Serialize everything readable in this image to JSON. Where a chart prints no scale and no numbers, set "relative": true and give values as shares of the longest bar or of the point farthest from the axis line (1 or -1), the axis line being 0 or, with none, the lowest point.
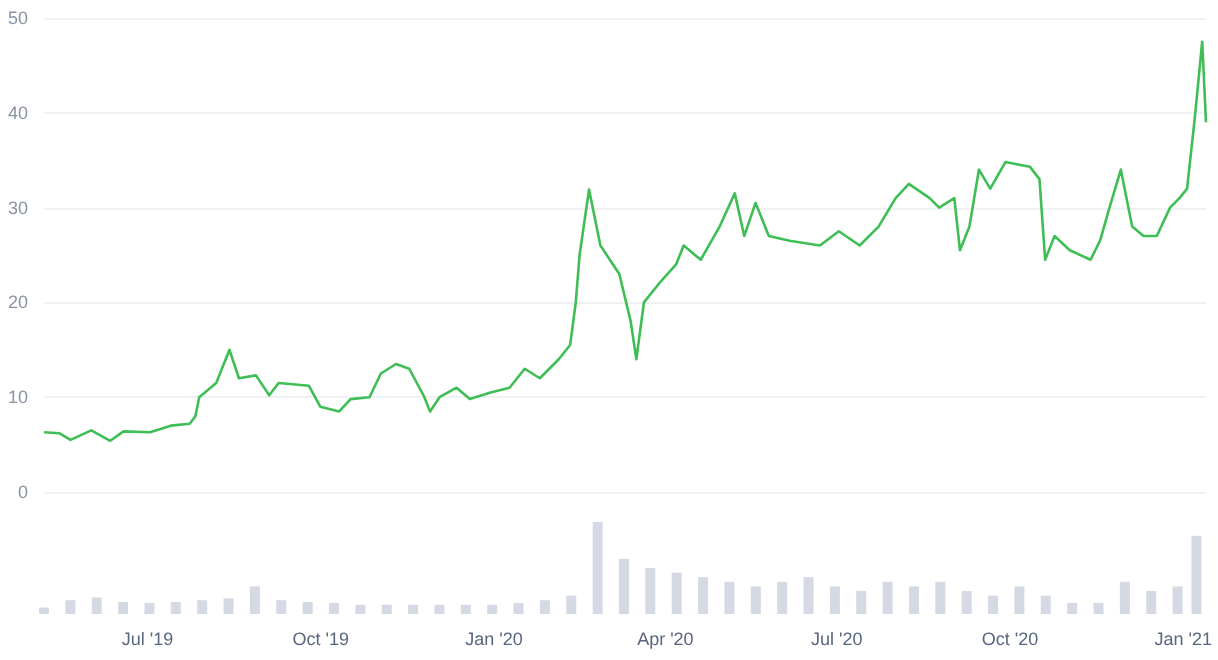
{
  "chart_data": [
    {
      "type": "line",
      "x": [
        "2019-05-07",
        "2019-05-15",
        "2019-05-21",
        "2019-06-01",
        "2019-06-11",
        "2019-06-18",
        "2019-07-02",
        "2019-07-13",
        "2019-07-23",
        "2019-07-26",
        "2019-07-28",
        "2019-08-06",
        "2019-08-13",
        "2019-08-18",
        "2019-08-27",
        "2019-09-03",
        "2019-09-08",
        "2019-09-24",
        "2019-09-30",
        "2019-10-10",
        "2019-10-16",
        "2019-10-26",
        "2019-11-01",
        "2019-11-09",
        "2019-11-16",
        "2019-11-24",
        "2019-11-27",
        "2019-12-02",
        "2019-12-11",
        "2019-12-18",
        "2019-12-29",
        "2020-01-08",
        "2020-01-16",
        "2020-01-24",
        "2020-02-03",
        "2020-02-09",
        "2020-02-12",
        "2020-02-14",
        "2020-02-19",
        "2020-02-25",
        "2020-03-01",
        "2020-03-06",
        "2020-03-12",
        "2020-03-15",
        "2020-03-19",
        "2020-03-27",
        "2020-04-05",
        "2020-04-09",
        "2020-04-18",
        "2020-04-28",
        "2020-05-06",
        "2020-05-11",
        "2020-05-17",
        "2020-05-24",
        "2020-06-04",
        "2020-06-20",
        "2020-06-30",
        "2020-07-11",
        "2020-07-21",
        "2020-07-30",
        "2020-08-06",
        "2020-08-17",
        "2020-08-22",
        "2020-08-30",
        "2020-09-02",
        "2020-09-07",
        "2020-09-12",
        "2020-09-18",
        "2020-09-26",
        "2020-10-09",
        "2020-10-14",
        "2020-10-17",
        "2020-10-22",
        "2020-10-30",
        "2020-11-10",
        "2020-11-15",
        "2020-11-20",
        "2020-11-26",
        "2020-12-02",
        "2020-12-08",
        "2020-12-15",
        "2020-12-22",
        "2020-12-27",
        "2020-12-31",
        "2021-01-04",
        "2021-01-08",
        "2021-01-10"
      ],
      "series": [
        {
          "color": "#3fbe55",
          "values": [
            6.3,
            6.2,
            5.5,
            6.5,
            5.4,
            6.4,
            6.3,
            7.0,
            7.2,
            8.0,
            10,
            11.5,
            15,
            12,
            12.3,
            10.2,
            11.5,
            11.2,
            9,
            8.5,
            9.8,
            10,
            12.5,
            13.5,
            13,
            10,
            8.5,
            10,
            11,
            9.8,
            10.5,
            11,
            13,
            12,
            14,
            15.5,
            20,
            25,
            31.9,
            26,
            24.5,
            23,
            18,
            14,
            20,
            22,
            24,
            26,
            24.5,
            28,
            31.5,
            27,
            30.5,
            27,
            26.5,
            26,
            27.5,
            26,
            28,
            31,
            32.5,
            31,
            30,
            31,
            25.5,
            28,
            34,
            32,
            34.8,
            34.3,
            33,
            24.5,
            27,
            25.5,
            24.5,
            26.5,
            30,
            34,
            28,
            27,
            27,
            30,
            31,
            32,
            39.3,
            47.5,
            39
          ]
        }
      ],
      "xlim": [
        "2019-05-07",
        "2021-01-10"
      ],
      "ylim": [
        0,
        50
      ],
      "yticks": [
        0,
        10,
        20,
        30,
        40,
        50
      ],
      "grid": "y",
      "tick_labels": "y",
      "marker": "none"
    },
    {
      "type": "bar",
      "relative": true,
      "x": [
        "2019-05-07",
        "2019-05-21",
        "2019-06-04",
        "2019-06-18",
        "2019-07-02",
        "2019-07-16",
        "2019-07-30",
        "2019-08-13",
        "2019-08-27",
        "2019-09-10",
        "2019-09-24",
        "2019-10-08",
        "2019-10-22",
        "2019-11-05",
        "2019-11-19",
        "2019-12-03",
        "2019-12-17",
        "2019-12-31",
        "2020-01-14",
        "2020-01-28",
        "2020-02-11",
        "2020-02-25",
        "2020-03-10",
        "2020-03-24",
        "2020-04-07",
        "2020-04-21",
        "2020-05-05",
        "2020-05-19",
        "2020-06-02",
        "2020-06-16",
        "2020-06-30",
        "2020-07-14",
        "2020-07-28",
        "2020-08-11",
        "2020-08-25",
        "2020-09-08",
        "2020-09-22",
        "2020-10-06",
        "2020-10-20",
        "2020-11-03",
        "2020-11-17",
        "2020-12-01",
        "2020-12-15",
        "2020-12-29",
        "2021-01-08"
      ],
      "series": [
        {
          "color": "#d4d9e3",
          "values": [
            0.07,
            0.15,
            0.18,
            0.13,
            0.12,
            0.13,
            0.15,
            0.17,
            0.3,
            0.15,
            0.13,
            0.12,
            0.1,
            0.1,
            0.1,
            0.1,
            0.1,
            0.1,
            0.12,
            0.15,
            0.2,
            1.0,
            0.6,
            0.5,
            0.45,
            0.4,
            0.35,
            0.3,
            0.35,
            0.4,
            0.3,
            0.25,
            0.35,
            0.3,
            0.35,
            0.25,
            0.2,
            0.3,
            0.2,
            0.12,
            0.12,
            0.35,
            0.25,
            0.3,
            0.85
          ]
        }
      ],
      "xlim": [
        "2019-05-07",
        "2021-01-10"
      ],
      "xticks": [
        {
          "value": "2019-07-01",
          "label": "Jul '19"
        },
        {
          "value": "2019-10-01",
          "label": "Oct '19"
        },
        {
          "value": "2020-01-01",
          "label": "Jan '20"
        },
        {
          "value": "2020-04-01",
          "label": "Apr '20"
        },
        {
          "value": "2020-07-01",
          "label": "Jul '20"
        },
        {
          "value": "2020-10-01",
          "label": "Oct '20"
        },
        {
          "value": "2021-01-01",
          "label": "Jan '21"
        }
      ],
      "tick_labels": "x"
    }
  ]
}
